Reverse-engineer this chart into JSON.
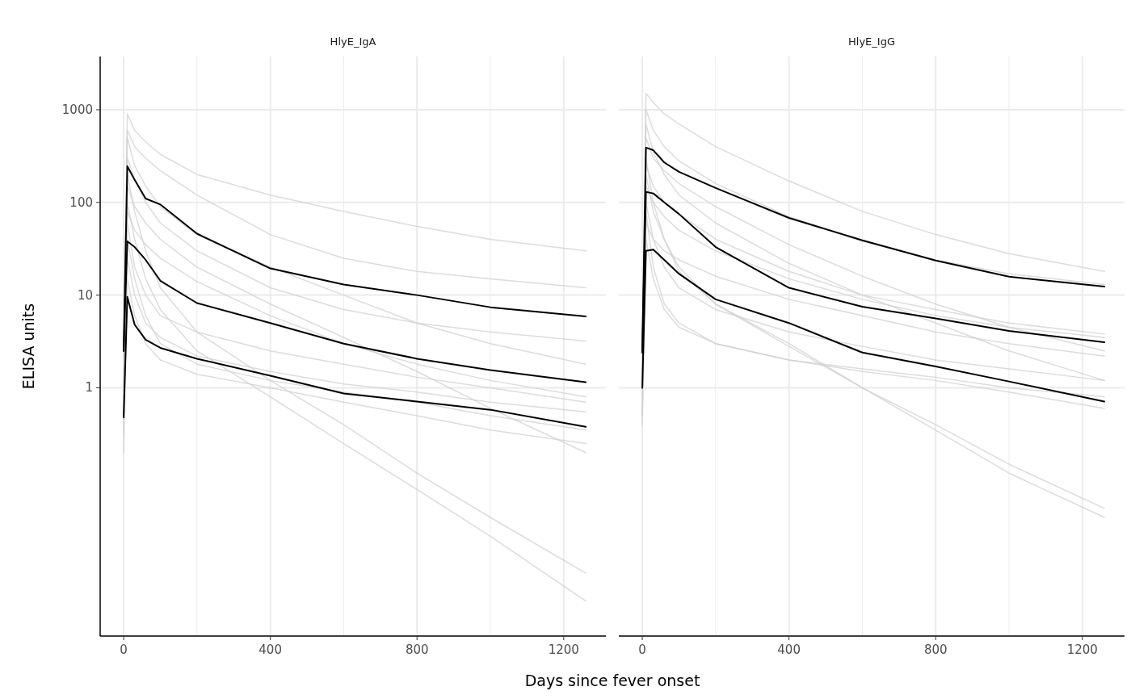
{
  "chart_data": [
    {
      "type": "line",
      "title": "HlyE_IgA",
      "xlabel": "Days since fever onset",
      "ylabel": "ELISA units",
      "log": "y",
      "grid": true,
      "xlim": [
        -64,
        1315
      ],
      "ylim": [
        0.0021,
        3750
      ],
      "xticks": [
        0,
        {
          "value": 200,
          "label": null
        },
        400,
        {
          "value": 600,
          "label": null
        },
        800,
        {
          "value": 1000,
          "label": null
        },
        1200
      ],
      "yticks": [
        1,
        10,
        100,
        1000
      ],
      "x": [
        0,
        10,
        30,
        60,
        100,
        200,
        400,
        600,
        800,
        1000,
        1260
      ],
      "series": [
        {
          "color": "#d0d0d0",
          "values": [
            0.8,
            900,
            600,
            450,
            330,
            200,
            120,
            80,
            55,
            40,
            30
          ]
        },
        {
          "color": "#d0d0d0",
          "values": [
            2,
            600,
            400,
            300,
            220,
            120,
            45,
            25,
            18,
            15,
            12
          ]
        },
        {
          "color": "#d0d0d0",
          "values": [
            1.5,
            500,
            250,
            150,
            90,
            45,
            20,
            10,
            5,
            3,
            1.8
          ]
        },
        {
          "color": "#d0d0d0",
          "values": [
            3,
            300,
            180,
            100,
            60,
            30,
            12,
            7,
            5,
            4,
            3.2
          ]
        },
        {
          "color": "#d0d0d0",
          "values": [
            0.5,
            200,
            80,
            30,
            12,
            4,
            1.2,
            0.4,
            0.12,
            0.04,
            0.01
          ]
        },
        {
          "color": "#d0d0d0",
          "values": [
            1,
            150,
            90,
            60,
            40,
            20,
            8,
            3.5,
            1.5,
            0.6,
            0.2
          ]
        },
        {
          "color": "#d0d0d0",
          "values": [
            0.3,
            100,
            40,
            15,
            7,
            2.5,
            0.8,
            0.25,
            0.08,
            0.025,
            0.005
          ]
        },
        {
          "color": "#d0d0d0",
          "values": [
            2,
            80,
            50,
            35,
            25,
            14,
            6,
            3,
            1.8,
            1.2,
            0.8
          ]
        },
        {
          "color": "#d0d0d0",
          "values": [
            1,
            60,
            20,
            10,
            6,
            4,
            2.5,
            1.8,
            1.3,
            1,
            0.7
          ]
        },
        {
          "color": "#d0d0d0",
          "values": [
            0.4,
            40,
            15,
            6,
            3,
            1.8,
            1.2,
            0.9,
            0.7,
            0.5,
            0.35
          ]
        },
        {
          "color": "#d0d0d0",
          "values": [
            0.8,
            25,
            10,
            5,
            3.5,
            2.2,
            1.5,
            1.1,
            0.9,
            0.7,
            0.55
          ]
        },
        {
          "color": "#d0d0d0",
          "values": [
            0.2,
            15,
            6,
            3,
            2,
            1.4,
            1,
            0.7,
            0.5,
            0.35,
            0.25
          ]
        },
        {
          "color": "#000000",
          "values": [
            2.5,
            246,
            175,
            110,
            95,
            46,
            19.4,
            13,
            10,
            7.4,
            5.9
          ]
        },
        {
          "color": "#000000",
          "values": [
            2.5,
            38,
            33,
            24,
            14.3,
            8.2,
            5,
            3,
            2.06,
            1.55,
            1.15
          ]
        },
        {
          "color": "#000000",
          "values": [
            0.48,
            9.6,
            4.8,
            3.3,
            2.7,
            2.06,
            1.35,
            0.87,
            0.71,
            0.58,
            0.38
          ]
        }
      ]
    },
    {
      "type": "line",
      "title": "HlyE_IgG",
      "log": "y",
      "grid": true,
      "tick_labels": "x",
      "xlim": [
        -64,
        1315
      ],
      "ylim": [
        0.0021,
        3750
      ],
      "xticks": [
        0,
        {
          "value": 200,
          "label": null
        },
        400,
        {
          "value": 600,
          "label": null
        },
        800,
        {
          "value": 1000,
          "label": null
        },
        1200
      ],
      "yticks": [
        1,
        10,
        100,
        1000
      ],
      "x": [
        0,
        10,
        30,
        60,
        100,
        200,
        400,
        600,
        800,
        1000,
        1260
      ],
      "series": [
        {
          "color": "#d0d0d0",
          "values": [
            1,
            1500,
            1200,
            900,
            700,
            400,
            170,
            80,
            45,
            28,
            18
          ]
        },
        {
          "color": "#d0d0d0",
          "values": [
            2,
            1000,
            600,
            400,
            280,
            160,
            70,
            38,
            24,
            17,
            13
          ]
        },
        {
          "color": "#d0d0d0",
          "values": [
            1,
            700,
            350,
            200,
            120,
            60,
            22,
            10,
            5,
            2.5,
            1.2
          ]
        },
        {
          "color": "#d0d0d0",
          "values": [
            3,
            500,
            300,
            220,
            160,
            90,
            35,
            16,
            8,
            4.5,
            2.5
          ]
        },
        {
          "color": "#d0d0d0",
          "values": [
            0.5,
            300,
            100,
            40,
            18,
            8,
            3,
            1,
            0.35,
            0.12,
            0.04
          ]
        },
        {
          "color": "#d0d0d0",
          "values": [
            1.5,
            250,
            150,
            100,
            75,
            40,
            18,
            10,
            7,
            5,
            3.8
          ]
        },
        {
          "color": "#d0d0d0",
          "values": [
            2,
            200,
            80,
            40,
            20,
            8,
            2.8,
            1,
            0.4,
            0.15,
            0.05
          ]
        },
        {
          "color": "#d0d0d0",
          "values": [
            0.8,
            150,
            100,
            70,
            50,
            30,
            15,
            9,
            6,
            4.5,
            3.5
          ]
        },
        {
          "color": "#d0d0d0",
          "values": [
            1,
            100,
            40,
            20,
            12,
            7,
            4,
            2.8,
            2,
            1.6,
            1.2
          ]
        },
        {
          "color": "#d0d0d0",
          "values": [
            0.5,
            80,
            20,
            8,
            5,
            3,
            2,
            1.6,
            1.3,
            1,
            0.8
          ]
        },
        {
          "color": "#d0d0d0",
          "values": [
            2,
            60,
            40,
            30,
            24,
            16,
            9,
            6,
            4,
            3,
            2.2
          ]
        },
        {
          "color": "#d0d0d0",
          "values": [
            0.4,
            40,
            15,
            7,
            4.5,
            3,
            2,
            1.5,
            1.2,
            0.9,
            0.6
          ]
        },
        {
          "color": "#000000",
          "values": [
            2.4,
            390,
            366,
            270,
            214,
            143,
            68,
            39,
            23.6,
            15.8,
            12.4
          ]
        },
        {
          "color": "#000000",
          "values": [
            2.4,
            130,
            125,
            100,
            75,
            33,
            12,
            7.5,
            5.6,
            4.1,
            3.1
          ]
        },
        {
          "color": "#000000",
          "values": [
            1,
            30,
            31,
            24,
            17,
            9,
            5,
            2.4,
            1.7,
            1.17,
            0.71
          ]
        }
      ]
    }
  ]
}
